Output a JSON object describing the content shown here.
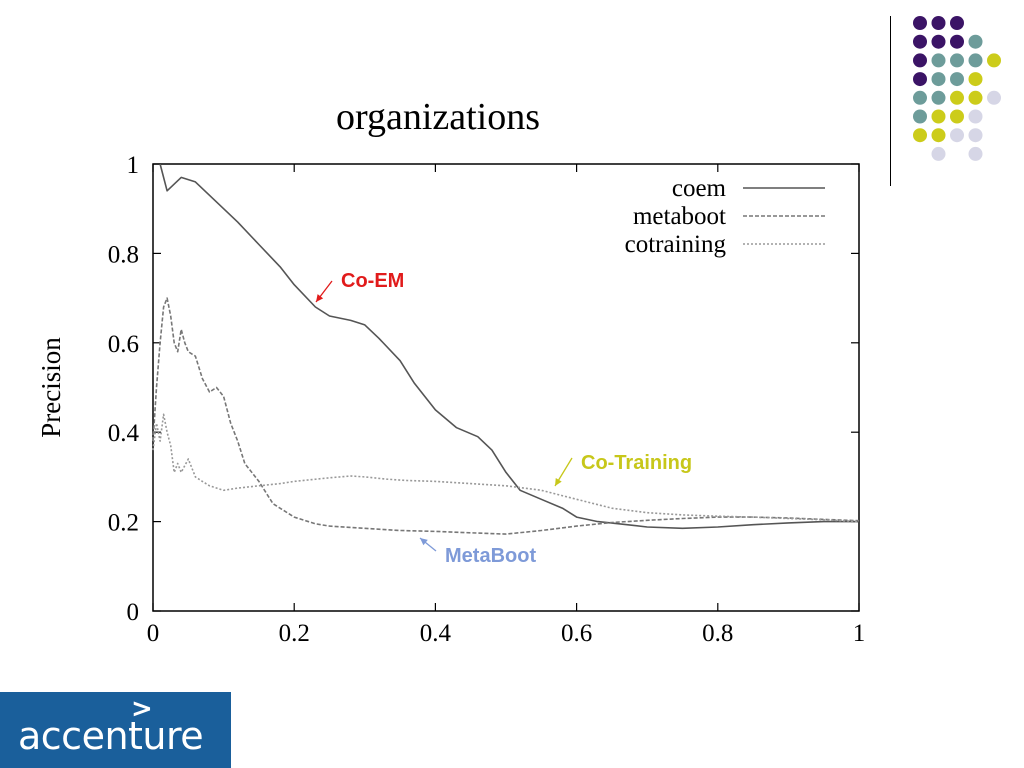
{
  "decor": {
    "dot_colors": {
      "purple": "#3b1466",
      "teal": "#6d9c9a",
      "yellow": "#cccc1a",
      "lavender": "#d6d6e6"
    },
    "dot_rows": [
      [
        "purple",
        "purple",
        "purple",
        "",
        "",
        ""
      ],
      [
        "purple",
        "purple",
        "purple",
        "teal",
        "",
        ""
      ],
      [
        "purple",
        "teal",
        "teal",
        "teal",
        "yellow",
        ""
      ],
      [
        "purple",
        "teal",
        "teal",
        "yellow",
        "",
        ""
      ],
      [
        "teal",
        "teal",
        "yellow",
        "yellow",
        "lavender",
        ""
      ],
      [
        "teal",
        "yellow",
        "yellow",
        "lavender",
        "",
        ""
      ],
      [
        "yellow",
        "yellow",
        "lavender",
        "lavender",
        "",
        ""
      ],
      [
        "",
        "lavender",
        "",
        "lavender",
        "",
        ""
      ]
    ]
  },
  "logo": {
    "word": "accenture",
    "mark": ">"
  },
  "annotations": {
    "coem": {
      "text": "Co-EM",
      "color": "#e11b1b"
    },
    "cotraining": {
      "text": "Co-Training",
      "color": "#c7c71a"
    },
    "metaboot": {
      "text": "MetaBoot",
      "color": "#7e9ad8"
    }
  },
  "chart_data": {
    "type": "line",
    "title": "organizations",
    "xlabel": "",
    "ylabel": "Precision",
    "xlim": [
      0,
      1
    ],
    "ylim": [
      0,
      1
    ],
    "x_ticks": [
      "0",
      "0.2",
      "0.4",
      "0.6",
      "0.8",
      "1"
    ],
    "y_ticks": [
      "0",
      "0.2",
      "0.4",
      "0.6",
      "0.8",
      "1"
    ],
    "legend_position": "top-right",
    "series": [
      {
        "name": "coem",
        "style": "solid",
        "points": [
          [
            0.01,
            1.0
          ],
          [
            0.02,
            0.94
          ],
          [
            0.04,
            0.97
          ],
          [
            0.06,
            0.96
          ],
          [
            0.08,
            0.93
          ],
          [
            0.1,
            0.9
          ],
          [
            0.12,
            0.87
          ],
          [
            0.15,
            0.82
          ],
          [
            0.18,
            0.77
          ],
          [
            0.2,
            0.73
          ],
          [
            0.23,
            0.68
          ],
          [
            0.25,
            0.66
          ],
          [
            0.28,
            0.65
          ],
          [
            0.3,
            0.64
          ],
          [
            0.32,
            0.61
          ],
          [
            0.35,
            0.56
          ],
          [
            0.37,
            0.51
          ],
          [
            0.4,
            0.45
          ],
          [
            0.43,
            0.41
          ],
          [
            0.46,
            0.39
          ],
          [
            0.48,
            0.36
          ],
          [
            0.5,
            0.31
          ],
          [
            0.52,
            0.27
          ],
          [
            0.55,
            0.25
          ],
          [
            0.58,
            0.23
          ],
          [
            0.6,
            0.21
          ],
          [
            0.63,
            0.2
          ],
          [
            0.66,
            0.195
          ],
          [
            0.7,
            0.188
          ],
          [
            0.75,
            0.185
          ],
          [
            0.8,
            0.188
          ],
          [
            0.85,
            0.193
          ],
          [
            0.9,
            0.197
          ],
          [
            0.95,
            0.2
          ],
          [
            1.0,
            0.2
          ]
        ]
      },
      {
        "name": "metaboot",
        "style": "dashed",
        "points": [
          [
            0.0,
            0.38
          ],
          [
            0.005,
            0.5
          ],
          [
            0.01,
            0.6
          ],
          [
            0.015,
            0.68
          ],
          [
            0.02,
            0.7
          ],
          [
            0.025,
            0.66
          ],
          [
            0.03,
            0.6
          ],
          [
            0.035,
            0.58
          ],
          [
            0.04,
            0.63
          ],
          [
            0.045,
            0.6
          ],
          [
            0.05,
            0.58
          ],
          [
            0.06,
            0.57
          ],
          [
            0.07,
            0.52
          ],
          [
            0.08,
            0.49
          ],
          [
            0.09,
            0.5
          ],
          [
            0.1,
            0.48
          ],
          [
            0.11,
            0.42
          ],
          [
            0.12,
            0.38
          ],
          [
            0.13,
            0.33
          ],
          [
            0.15,
            0.29
          ],
          [
            0.17,
            0.24
          ],
          [
            0.2,
            0.21
          ],
          [
            0.23,
            0.195
          ],
          [
            0.25,
            0.19
          ],
          [
            0.3,
            0.185
          ],
          [
            0.35,
            0.18
          ],
          [
            0.4,
            0.178
          ],
          [
            0.45,
            0.175
          ],
          [
            0.5,
            0.172
          ],
          [
            0.55,
            0.18
          ],
          [
            0.6,
            0.19
          ],
          [
            0.65,
            0.198
          ],
          [
            0.7,
            0.203
          ],
          [
            0.75,
            0.207
          ],
          [
            0.8,
            0.21
          ],
          [
            0.85,
            0.21
          ],
          [
            0.9,
            0.208
          ],
          [
            0.95,
            0.205
          ],
          [
            1.0,
            0.202
          ]
        ]
      },
      {
        "name": "cotraining",
        "style": "dotted",
        "points": [
          [
            0.0,
            0.36
          ],
          [
            0.005,
            0.42
          ],
          [
            0.01,
            0.38
          ],
          [
            0.015,
            0.44
          ],
          [
            0.02,
            0.4
          ],
          [
            0.025,
            0.37
          ],
          [
            0.03,
            0.31
          ],
          [
            0.035,
            0.33
          ],
          [
            0.04,
            0.31
          ],
          [
            0.05,
            0.34
          ],
          [
            0.06,
            0.3
          ],
          [
            0.07,
            0.29
          ],
          [
            0.08,
            0.28
          ],
          [
            0.1,
            0.27
          ],
          [
            0.12,
            0.275
          ],
          [
            0.15,
            0.28
          ],
          [
            0.18,
            0.285
          ],
          [
            0.2,
            0.29
          ],
          [
            0.25,
            0.298
          ],
          [
            0.28,
            0.302
          ],
          [
            0.3,
            0.3
          ],
          [
            0.33,
            0.295
          ],
          [
            0.36,
            0.292
          ],
          [
            0.4,
            0.29
          ],
          [
            0.45,
            0.285
          ],
          [
            0.5,
            0.28
          ],
          [
            0.55,
            0.27
          ],
          [
            0.6,
            0.25
          ],
          [
            0.65,
            0.23
          ],
          [
            0.7,
            0.22
          ],
          [
            0.75,
            0.215
          ],
          [
            0.8,
            0.212
          ],
          [
            0.85,
            0.21
          ],
          [
            0.9,
            0.207
          ],
          [
            0.95,
            0.204
          ],
          [
            1.0,
            0.2
          ]
        ]
      }
    ]
  }
}
